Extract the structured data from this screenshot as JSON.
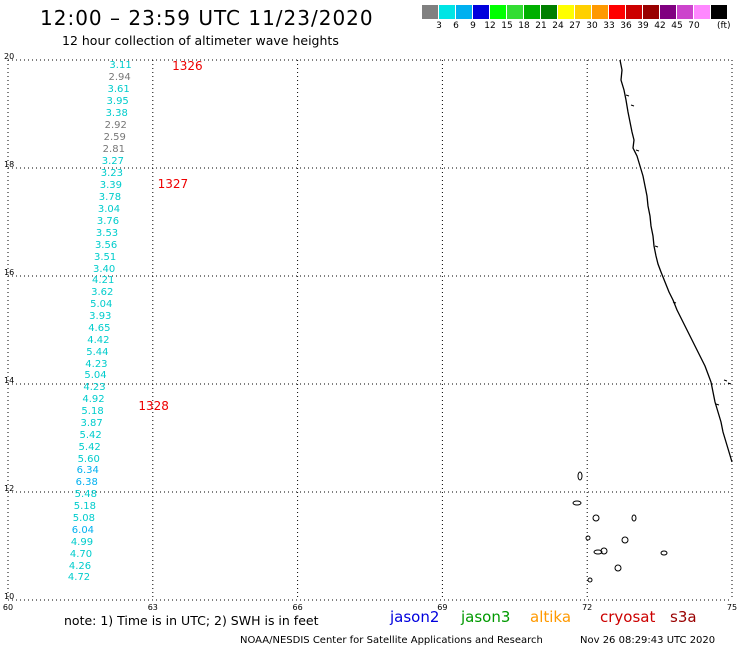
{
  "header": {
    "title": "12:00 – 23:59 UTC 11/23/2020",
    "subtitle": "12 hour collection of altimeter wave heights"
  },
  "legend": {
    "unit": "(ft)",
    "bins": [
      {
        "label": "",
        "color": "#808080"
      },
      {
        "label": "3",
        "color": "#00e5e5"
      },
      {
        "label": "6",
        "color": "#00b0f0"
      },
      {
        "label": "9",
        "color": "#0000dd"
      },
      {
        "label": "12",
        "color": "#00ff00"
      },
      {
        "label": "15",
        "color": "#33dd33"
      },
      {
        "label": "18",
        "color": "#00b000"
      },
      {
        "label": "21",
        "color": "#008000"
      },
      {
        "label": "24",
        "color": "#ffff00"
      },
      {
        "label": "27",
        "color": "#ffd000"
      },
      {
        "label": "30",
        "color": "#ff9900"
      },
      {
        "label": "33",
        "color": "#ff0000"
      },
      {
        "label": "36",
        "color": "#cc0000"
      },
      {
        "label": "39",
        "color": "#990000"
      },
      {
        "label": "42",
        "color": "#800080"
      },
      {
        "label": "45",
        "color": "#cc44cc"
      },
      {
        "label": "70",
        "color": "#ff88ff"
      },
      {
        "label": "",
        "color": "#000000"
      }
    ]
  },
  "axes": {
    "lat_ticks": [
      "20",
      "18",
      "16",
      "14",
      "12",
      "10"
    ],
    "lon_ticks": [
      "60",
      "63",
      "66",
      "69",
      "72",
      "75"
    ]
  },
  "track_times": [
    {
      "time": "1326",
      "lat": 19.88,
      "lon": 63.4
    },
    {
      "time": "1327",
      "lat": 17.7,
      "lon": 63.1
    },
    {
      "time": "1328",
      "lat": 13.6,
      "lon": 62.7
    }
  ],
  "swh_readings": [
    {
      "value": "3.11",
      "lat": 19.88,
      "lon": 62.06,
      "color": "#00cccc"
    },
    {
      "value": "2.94",
      "lat": 19.66,
      "lon": 62.04,
      "color": "#777777"
    },
    {
      "value": "3.61",
      "lat": 19.44,
      "lon": 62.02,
      "color": "#00cccc"
    },
    {
      "value": "3.95",
      "lat": 19.22,
      "lon": 62.0,
      "color": "#00cccc"
    },
    {
      "value": "3.38",
      "lat": 19.0,
      "lon": 61.98,
      "color": "#00cccc"
    },
    {
      "value": "2.92",
      "lat": 18.78,
      "lon": 61.96,
      "color": "#777777"
    },
    {
      "value": "2.59",
      "lat": 18.55,
      "lon": 61.94,
      "color": "#777777"
    },
    {
      "value": "2.81",
      "lat": 18.33,
      "lon": 61.92,
      "color": "#777777"
    },
    {
      "value": "3.27",
      "lat": 18.11,
      "lon": 61.9,
      "color": "#00cccc"
    },
    {
      "value": "3.23",
      "lat": 17.89,
      "lon": 61.88,
      "color": "#00cccc"
    },
    {
      "value": "3.39",
      "lat": 17.67,
      "lon": 61.86,
      "color": "#00cccc"
    },
    {
      "value": "3.78",
      "lat": 17.45,
      "lon": 61.84,
      "color": "#00cccc"
    },
    {
      "value": "3.04",
      "lat": 17.23,
      "lon": 61.82,
      "color": "#00cccc"
    },
    {
      "value": "3.76",
      "lat": 17.0,
      "lon": 61.8,
      "color": "#00cccc"
    },
    {
      "value": "3.53",
      "lat": 16.78,
      "lon": 61.78,
      "color": "#00cccc"
    },
    {
      "value": "3.56",
      "lat": 16.56,
      "lon": 61.76,
      "color": "#00cccc"
    },
    {
      "value": "3.51",
      "lat": 16.34,
      "lon": 61.74,
      "color": "#00cccc"
    },
    {
      "value": "3.40",
      "lat": 16.12,
      "lon": 61.72,
      "color": "#00cccc"
    },
    {
      "value": "4.21",
      "lat": 15.9,
      "lon": 61.7,
      "color": "#00cccc"
    },
    {
      "value": "3.62",
      "lat": 15.68,
      "lon": 61.68,
      "color": "#00cccc"
    },
    {
      "value": "5.04",
      "lat": 15.46,
      "lon": 61.66,
      "color": "#00cccc"
    },
    {
      "value": "3.93",
      "lat": 15.24,
      "lon": 61.64,
      "color": "#00cccc"
    },
    {
      "value": "4.65",
      "lat": 15.02,
      "lon": 61.62,
      "color": "#00cccc"
    },
    {
      "value": "4.42",
      "lat": 14.8,
      "lon": 61.6,
      "color": "#00cccc"
    },
    {
      "value": "5.44",
      "lat": 14.58,
      "lon": 61.58,
      "color": "#00cccc"
    },
    {
      "value": "4.23",
      "lat": 14.36,
      "lon": 61.56,
      "color": "#00cccc"
    },
    {
      "value": "5.04",
      "lat": 14.14,
      "lon": 61.54,
      "color": "#00cccc"
    },
    {
      "value": "4.23",
      "lat": 13.92,
      "lon": 61.52,
      "color": "#00cccc"
    },
    {
      "value": "4.92",
      "lat": 13.7,
      "lon": 61.5,
      "color": "#00cccc"
    },
    {
      "value": "5.18",
      "lat": 13.48,
      "lon": 61.48,
      "color": "#00cccc"
    },
    {
      "value": "3.87",
      "lat": 13.26,
      "lon": 61.46,
      "color": "#00cccc"
    },
    {
      "value": "5.42",
      "lat": 13.04,
      "lon": 61.44,
      "color": "#00cccc"
    },
    {
      "value": "5.42",
      "lat": 12.82,
      "lon": 61.42,
      "color": "#00cccc"
    },
    {
      "value": "5.60",
      "lat": 12.6,
      "lon": 61.4,
      "color": "#00cccc"
    },
    {
      "value": "6.34",
      "lat": 12.38,
      "lon": 61.38,
      "color": "#00b0f0"
    },
    {
      "value": "6.38",
      "lat": 12.16,
      "lon": 61.36,
      "color": "#00b0f0"
    },
    {
      "value": "5.48",
      "lat": 11.94,
      "lon": 61.34,
      "color": "#00cccc"
    },
    {
      "value": "5.18",
      "lat": 11.72,
      "lon": 61.32,
      "color": "#00cccc"
    },
    {
      "value": "5.08",
      "lat": 11.5,
      "lon": 61.3,
      "color": "#00cccc"
    },
    {
      "value": "6.04",
      "lat": 11.28,
      "lon": 61.28,
      "color": "#00b0f0"
    },
    {
      "value": "4.99",
      "lat": 11.06,
      "lon": 61.26,
      "color": "#00cccc"
    },
    {
      "value": "4.70",
      "lat": 10.84,
      "lon": 61.24,
      "color": "#00cccc"
    },
    {
      "value": "4.26",
      "lat": 10.62,
      "lon": 61.22,
      "color": "#00cccc"
    },
    {
      "value": "4.72",
      "lat": 10.4,
      "lon": 61.2,
      "color": "#00cccc"
    }
  ],
  "note": "note: 1) Time is in UTC; 2) SWH is in feet",
  "satellites": [
    {
      "name": "jason2",
      "color": "#0000dd"
    },
    {
      "name": "jason3",
      "color": "#009900"
    },
    {
      "name": "altika",
      "color": "#ff9900"
    },
    {
      "name": "cryosat",
      "color": "#cc0000"
    },
    {
      "name": "s3a",
      "color": "#990000"
    }
  ],
  "footer": {
    "credit": "NOAA/NESDIS Center for Satellite Applications and Research",
    "timestamp": "Nov 26 08:29:43 UTC 2020"
  }
}
